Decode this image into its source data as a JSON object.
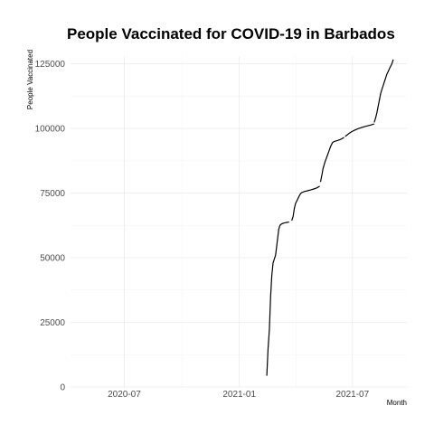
{
  "chart_data": {
    "type": "line",
    "title": "People Vaccinated for COVID-19 in Barbados",
    "xlabel": "Month",
    "ylabel": "People Vaccinated",
    "x_is_date": true,
    "xlim": [
      "2020-04-06",
      "2021-09-26"
    ],
    "ylim": [
      0,
      128000
    ],
    "y_ticks": [
      0,
      25000,
      50000,
      75000,
      100000,
      125000
    ],
    "y_tick_labels": [
      "0",
      "25000",
      "50000",
      "75000",
      "100000",
      "125000"
    ],
    "x_ticks": [
      "2020-07-01",
      "2021-01-01",
      "2021-07-01"
    ],
    "x_tick_labels": [
      "2020-07",
      "2021-01",
      "2021-07"
    ],
    "grid": true,
    "series": [
      {
        "segments": [
          {
            "x": [
              "2021-02-14",
              "2021-02-16",
              "2021-02-18",
              "2021-02-20",
              "2021-02-22",
              "2021-02-24",
              "2021-02-26",
              "2021-02-28",
              "2021-03-01",
              "2021-03-03",
              "2021-03-05",
              "2021-03-07",
              "2021-03-09",
              "2021-03-11",
              "2021-03-13",
              "2021-03-15",
              "2021-03-17",
              "2021-03-19",
              "2021-03-21"
            ],
            "y": [
              4500,
              15000,
              22000,
              35000,
              43000,
              48000,
              49500,
              51000,
              53000,
              57000,
              61000,
              62500,
              63000,
              63200,
              63400,
              63500,
              63600,
              63700,
              63800
            ]
          },
          {
            "x": [
              "2021-03-26",
              "2021-03-28",
              "2021-03-30",
              "2021-04-01",
              "2021-04-03",
              "2021-04-05",
              "2021-04-07",
              "2021-04-09",
              "2021-04-11",
              "2021-04-15",
              "2021-04-20",
              "2021-04-25",
              "2021-04-30",
              "2021-05-05",
              "2021-05-09"
            ],
            "y": [
              64500,
              66000,
              69000,
              71000,
              72000,
              73000,
              74000,
              74800,
              75200,
              75600,
              75900,
              76200,
              76600,
              77000,
              77600
            ]
          },
          {
            "x": [
              "2021-05-11",
              "2021-05-13",
              "2021-05-15",
              "2021-05-18",
              "2021-05-21",
              "2021-05-24",
              "2021-05-27",
              "2021-05-30",
              "2021-06-02",
              "2021-06-05",
              "2021-06-08",
              "2021-06-11",
              "2021-06-14",
              "2021-06-17"
            ],
            "y": [
              79500,
              82000,
              84500,
              87000,
              89000,
              91000,
              93000,
              94500,
              95000,
              95200,
              95400,
              95700,
              96000,
              96500
            ]
          },
          {
            "x": [
              "2021-06-20",
              "2021-06-25",
              "2021-06-30",
              "2021-07-05",
              "2021-07-10",
              "2021-07-15",
              "2021-07-20",
              "2021-07-25",
              "2021-07-30",
              "2021-08-04"
            ],
            "y": [
              97000,
              98000,
              98800,
              99400,
              99900,
              100300,
              100700,
              101000,
              101300,
              101700
            ]
          },
          {
            "x": [
              "2021-08-05",
              "2021-08-07",
              "2021-08-09",
              "2021-08-11",
              "2021-08-13",
              "2021-08-15",
              "2021-08-17",
              "2021-08-19",
              "2021-08-21",
              "2021-08-23",
              "2021-08-25",
              "2021-08-27",
              "2021-08-29",
              "2021-08-31",
              "2021-09-02",
              "2021-09-04"
            ],
            "y": [
              102500,
              104000,
              106000,
              108500,
              111000,
              113500,
              115000,
              116500,
              118000,
              119500,
              121000,
              122000,
              123000,
              124000,
              125000,
              126500
            ]
          }
        ]
      }
    ]
  }
}
